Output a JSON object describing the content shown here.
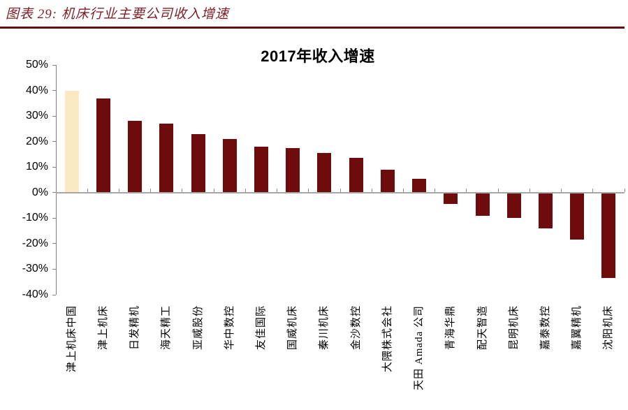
{
  "figure_header": {
    "text": "图表 29: 机床行业主要公司收入增速"
  },
  "colors": {
    "caption_red": "#7E1D26",
    "rule_red": "#670D12",
    "bar_maroon": "#6E0B0C",
    "bar_highlight_cream": "#FCE9C4",
    "axis_gray": "#7F7F7F",
    "zero_line_gray": "#A6A6A6",
    "text_black": "#000000"
  },
  "chart_data": {
    "type": "bar",
    "title": "2017年收入增速",
    "categories": [
      "津上机床中国",
      "津上机床",
      "日发精机",
      "海天精工",
      "亚威股份",
      "华中数控",
      "友佳国际",
      "国威机床",
      "秦川机床",
      "金沙数控",
      "大隈株式会社",
      "天田 Amada 公司",
      "青海华鼎",
      "配天智造",
      "昆明机床",
      "嘉泰数控",
      "嘉翼精机",
      "沈阳机床"
    ],
    "values": [
      40,
      37,
      28,
      27,
      23,
      21,
      18,
      17.5,
      15.5,
      13.5,
      9,
      5.5,
      -4.5,
      -9,
      -10,
      -14,
      -18.5,
      -33.5
    ],
    "unit": "%",
    "highlight_index": 0,
    "highlight_category": "津上机床中国",
    "ylim": [
      -40,
      50
    ],
    "ytick_step": 10,
    "ytick_labels": [
      "50%",
      "40%",
      "30%",
      "20%",
      "10%",
      "0%",
      "-10%",
      "-20%",
      "-30%",
      "-40%"
    ],
    "grid": false,
    "legend": "none"
  }
}
